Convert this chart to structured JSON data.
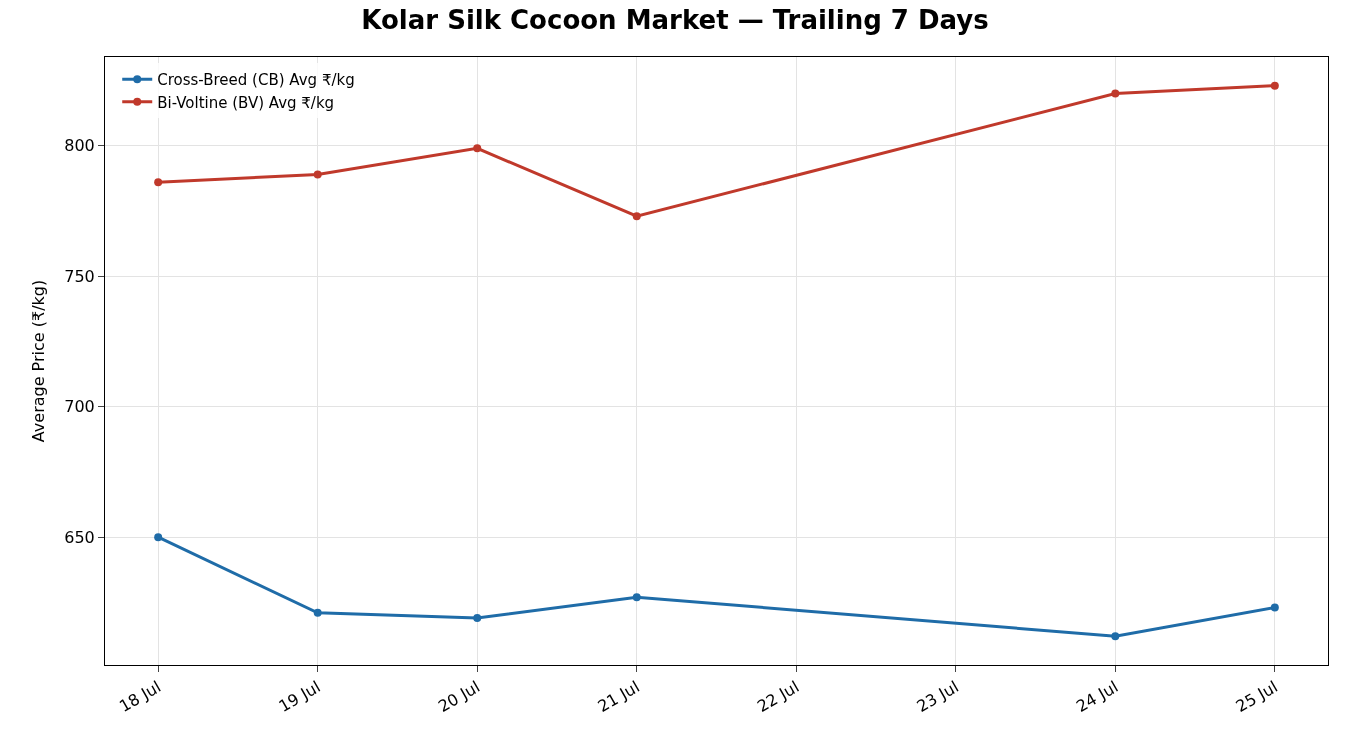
{
  "chart_data": {
    "type": "line",
    "title": "Kolar Silk Cocoon Market — Trailing 7 Days",
    "ylabel": "Average Price (₹/kg)",
    "x": [
      "--07-18",
      "--07-19",
      "--07-20",
      "--07-21",
      "--07-24",
      "--07-25"
    ],
    "series": [
      {
        "name": "Cross-Breed (CB) Avg ₹/kg",
        "color": "#1f6ca8",
        "values": [
          650,
          621,
          619,
          627,
          612,
          623
        ]
      },
      {
        "name": "Bi-Voltine (BV) Avg ₹/kg",
        "color": "#c0392b",
        "values": [
          786,
          789,
          799,
          773,
          820,
          823
        ]
      }
    ],
    "xlim": [
      "--07-17T16:00",
      "--07-25T08:00"
    ],
    "xticks": [
      {
        "value": "--07-18",
        "label": "18 Jul"
      },
      {
        "value": "--07-19",
        "label": "19 Jul"
      },
      {
        "value": "--07-20",
        "label": "20 Jul"
      },
      {
        "value": "--07-21",
        "label": "21 Jul"
      },
      {
        "value": "--07-22",
        "label": "22 Jul"
      },
      {
        "value": "--07-23",
        "label": "23 Jul"
      },
      {
        "value": "--07-24",
        "label": "24 Jul"
      },
      {
        "value": "--07-25",
        "label": "25 Jul"
      }
    ],
    "ylim": [
      601,
      834
    ],
    "yticks": [
      650,
      700,
      750,
      800
    ],
    "grid": true,
    "legend": "top left",
    "marker": "circle",
    "line_style": "solid"
  }
}
